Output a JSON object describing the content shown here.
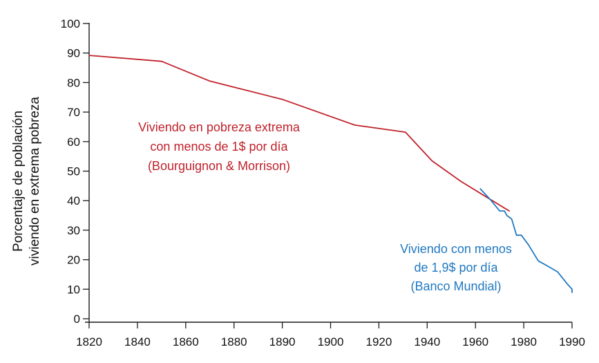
{
  "chart_data": {
    "type": "line",
    "title": "",
    "xlabel": "",
    "ylabel_lines": [
      "Porcentaje de población",
      "viviendo en extrema pobreza"
    ],
    "x_ticks": [
      "1820",
      "1840",
      "1860",
      "1880",
      "1890",
      "1900",
      "1920",
      "1940",
      "1960",
      "1980",
      "1990"
    ],
    "y_ticks": [
      "0",
      "10",
      "20",
      "30",
      "40",
      "50",
      "60",
      "70",
      "80",
      "90",
      "100"
    ],
    "ylim": [
      0,
      100
    ],
    "grid": false,
    "legend": "none",
    "series": [
      {
        "color": "#c0212b",
        "x": [
          1820,
          1850,
          1870,
          1890,
          1910,
          1931,
          1942,
          1954,
          1964,
          1974
        ],
        "y": [
          89.2,
          87.2,
          80.5,
          74.3,
          65.6,
          63.2,
          53.5,
          46.5,
          41.5,
          36.5
        ]
      },
      {
        "color": "#1f78c1",
        "x": [
          1962,
          1966,
          1970,
          1972,
          1973,
          1975,
          1977,
          1979,
          1981,
          1983,
          1985,
          1987,
          1989,
          1991,
          1993
        ],
        "y": [
          44.0,
          40.5,
          36.5,
          36.5,
          35.0,
          33.8,
          28.3,
          28.3,
          25.0,
          19.6,
          17.8,
          15.9,
          11.8,
          10.0,
          8.9
        ]
      }
    ],
    "annotations": [
      {
        "color": "#c0212b",
        "lines": [
          "Viviendo en pobreza extrema",
          "con menos de 1$ por día",
          "(Bourguignon & Morrison)"
        ]
      },
      {
        "color": "#1f78c1",
        "lines": [
          "Viviendo con menos",
          "de 1,9$ por día",
          "(Banco Mundial)"
        ]
      }
    ]
  }
}
